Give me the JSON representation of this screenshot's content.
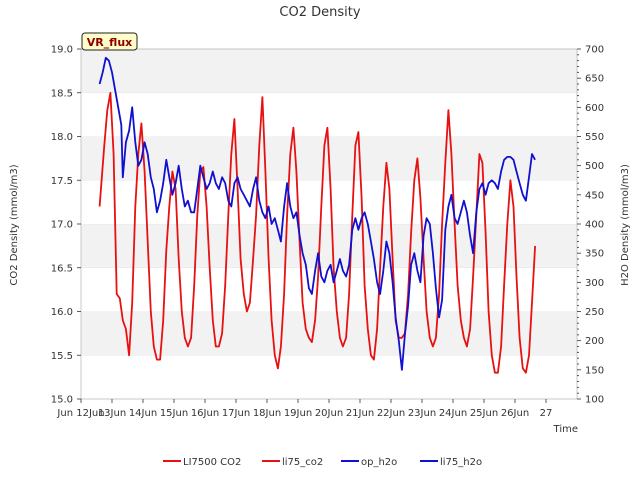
{
  "chart_data": {
    "type": "line",
    "title": "CO2 Density",
    "xlabel": "Time",
    "ylabel": "CO2 Density (mmol/m3)",
    "ylabel_right": "H2O Density (mmol/m3)",
    "badge": "VR_flux",
    "x_ticks": [
      "Jun 12Jun",
      "13Jun",
      "14Jun",
      "15Jun",
      "16Jun",
      "17Jun",
      "18Jun",
      "19Jun",
      "20Jun",
      "21Jun",
      "22Jun",
      "23Jun",
      "24Jun",
      "25Jun",
      "26Jun",
      "27"
    ],
    "xlim": [
      11,
      27
    ],
    "ylim_left": [
      15.0,
      19.0
    ],
    "ylim_right": [
      100,
      700
    ],
    "y_ticks_left": [
      "15.0",
      "15.5",
      "16.0",
      "16.5",
      "17.0",
      "17.5",
      "18.0",
      "18.5",
      "19.0"
    ],
    "y_ticks_right": [
      "100",
      "150",
      "200",
      "250",
      "300",
      "350",
      "400",
      "450",
      "500",
      "550",
      "600",
      "650",
      "700"
    ],
    "grid": "horizontal bands",
    "legend_position": "bottom",
    "legend": [
      {
        "name": "LI7500 CO2",
        "color": "#e81010"
      },
      {
        "name": "li75_co2",
        "color": "#e81010"
      },
      {
        "name": "op_h2o",
        "color": "#1010d0"
      },
      {
        "name": "li75_h2o",
        "color": "#1010d0"
      }
    ],
    "series": [
      {
        "name": "li75_co2",
        "axis": "left",
        "color": "#e81010",
        "points": [
          [
            11.6,
            17.2
          ],
          [
            11.75,
            17.9
          ],
          [
            11.85,
            18.3
          ],
          [
            11.95,
            18.5
          ],
          [
            12.05,
            17.8
          ],
          [
            12.15,
            16.2
          ],
          [
            12.25,
            16.15
          ],
          [
            12.35,
            15.9
          ],
          [
            12.45,
            15.8
          ],
          [
            12.55,
            15.5
          ],
          [
            12.65,
            16.1
          ],
          [
            12.75,
            17.2
          ],
          [
            12.85,
            17.8
          ],
          [
            12.95,
            18.15
          ],
          [
            13.05,
            17.6
          ],
          [
            13.15,
            16.8
          ],
          [
            13.25,
            16.0
          ],
          [
            13.35,
            15.6
          ],
          [
            13.45,
            15.45
          ],
          [
            13.55,
            15.45
          ],
          [
            13.65,
            15.9
          ],
          [
            13.75,
            16.7
          ],
          [
            13.85,
            17.2
          ],
          [
            13.95,
            17.6
          ],
          [
            14.05,
            17.4
          ],
          [
            14.15,
            16.6
          ],
          [
            14.25,
            16.0
          ],
          [
            14.35,
            15.7
          ],
          [
            14.45,
            15.6
          ],
          [
            14.55,
            15.7
          ],
          [
            14.65,
            16.3
          ],
          [
            14.75,
            17.1
          ],
          [
            14.85,
            17.6
          ],
          [
            14.95,
            17.65
          ],
          [
            15.05,
            17.2
          ],
          [
            15.15,
            16.5
          ],
          [
            15.25,
            15.9
          ],
          [
            15.35,
            15.6
          ],
          [
            15.45,
            15.6
          ],
          [
            15.55,
            15.75
          ],
          [
            15.65,
            16.3
          ],
          [
            15.75,
            17.1
          ],
          [
            15.85,
            17.8
          ],
          [
            15.95,
            18.2
          ],
          [
            16.05,
            17.4
          ],
          [
            16.15,
            16.6
          ],
          [
            16.25,
            16.2
          ],
          [
            16.35,
            16.0
          ],
          [
            16.45,
            16.1
          ],
          [
            16.55,
            16.6
          ],
          [
            16.65,
            17.1
          ],
          [
            16.75,
            17.9
          ],
          [
            16.85,
            18.45
          ],
          [
            16.95,
            17.6
          ],
          [
            17.05,
            16.6
          ],
          [
            17.15,
            15.9
          ],
          [
            17.25,
            15.5
          ],
          [
            17.35,
            15.35
          ],
          [
            17.45,
            15.6
          ],
          [
            17.55,
            16.2
          ],
          [
            17.65,
            17.1
          ],
          [
            17.75,
            17.8
          ],
          [
            17.85,
            18.1
          ],
          [
            17.95,
            17.6
          ],
          [
            18.05,
            16.8
          ],
          [
            18.15,
            16.1
          ],
          [
            18.25,
            15.8
          ],
          [
            18.35,
            15.7
          ],
          [
            18.45,
            15.65
          ],
          [
            18.55,
            15.9
          ],
          [
            18.65,
            16.4
          ],
          [
            18.75,
            17.2
          ],
          [
            18.85,
            17.9
          ],
          [
            18.95,
            18.1
          ],
          [
            19.05,
            17.4
          ],
          [
            19.15,
            16.5
          ],
          [
            19.25,
            16.0
          ],
          [
            19.35,
            15.7
          ],
          [
            19.45,
            15.6
          ],
          [
            19.55,
            15.7
          ],
          [
            19.65,
            16.2
          ],
          [
            19.75,
            17.1
          ],
          [
            19.85,
            17.9
          ],
          [
            19.95,
            18.05
          ],
          [
            20.05,
            17.3
          ],
          [
            20.15,
            16.3
          ],
          [
            20.25,
            15.8
          ],
          [
            20.35,
            15.5
          ],
          [
            20.45,
            15.45
          ],
          [
            20.55,
            15.8
          ],
          [
            20.65,
            16.5
          ],
          [
            20.75,
            17.2
          ],
          [
            20.85,
            17.7
          ],
          [
            20.95,
            17.4
          ],
          [
            21.05,
            16.6
          ],
          [
            21.15,
            15.9
          ],
          [
            21.25,
            15.7
          ],
          [
            21.35,
            15.7
          ],
          [
            21.45,
            15.75
          ],
          [
            21.55,
            16.2
          ],
          [
            21.65,
            16.9
          ],
          [
            21.75,
            17.5
          ],
          [
            21.85,
            17.75
          ],
          [
            21.95,
            17.3
          ],
          [
            22.05,
            16.6
          ],
          [
            22.15,
            16.0
          ],
          [
            22.25,
            15.7
          ],
          [
            22.35,
            15.6
          ],
          [
            22.45,
            15.7
          ],
          [
            22.55,
            16.2
          ],
          [
            22.65,
            17.0
          ],
          [
            22.75,
            17.7
          ],
          [
            22.85,
            18.3
          ],
          [
            22.95,
            17.8
          ],
          [
            23.05,
            17.0
          ],
          [
            23.15,
            16.3
          ],
          [
            23.25,
            15.9
          ],
          [
            23.35,
            15.7
          ],
          [
            23.45,
            15.6
          ],
          [
            23.55,
            15.8
          ],
          [
            23.65,
            16.4
          ],
          [
            23.75,
            17.1
          ],
          [
            23.85,
            17.8
          ],
          [
            23.95,
            17.7
          ],
          [
            24.05,
            16.9
          ],
          [
            24.15,
            16.0
          ],
          [
            24.25,
            15.5
          ],
          [
            24.35,
            15.3
          ],
          [
            24.45,
            15.3
          ],
          [
            24.55,
            15.6
          ],
          [
            24.65,
            16.3
          ],
          [
            24.75,
            17.0
          ],
          [
            24.85,
            17.5
          ],
          [
            24.95,
            17.2
          ],
          [
            25.05,
            16.4
          ],
          [
            25.15,
            15.7
          ],
          [
            25.25,
            15.35
          ],
          [
            25.35,
            15.3
          ],
          [
            25.45,
            15.5
          ],
          [
            25.55,
            16.1
          ],
          [
            25.65,
            16.75
          ]
        ]
      },
      {
        "name": "li75_h2o",
        "axis": "right",
        "color": "#1010d0",
        "points": [
          [
            11.6,
            640
          ],
          [
            11.7,
            660
          ],
          [
            11.8,
            685
          ],
          [
            11.9,
            680
          ],
          [
            12.0,
            660
          ],
          [
            12.1,
            630
          ],
          [
            12.2,
            600
          ],
          [
            12.3,
            570
          ],
          [
            12.35,
            480
          ],
          [
            12.45,
            540
          ],
          [
            12.55,
            560
          ],
          [
            12.65,
            600
          ],
          [
            12.75,
            540
          ],
          [
            12.85,
            500
          ],
          [
            12.95,
            510
          ],
          [
            13.05,
            540
          ],
          [
            13.15,
            520
          ],
          [
            13.25,
            480
          ],
          [
            13.35,
            460
          ],
          [
            13.45,
            420
          ],
          [
            13.55,
            440
          ],
          [
            13.65,
            470
          ],
          [
            13.75,
            510
          ],
          [
            13.85,
            480
          ],
          [
            13.95,
            450
          ],
          [
            14.05,
            470
          ],
          [
            14.15,
            500
          ],
          [
            14.25,
            460
          ],
          [
            14.35,
            430
          ],
          [
            14.45,
            440
          ],
          [
            14.55,
            420
          ],
          [
            14.65,
            420
          ],
          [
            14.75,
            460
          ],
          [
            14.85,
            500
          ],
          [
            14.95,
            480
          ],
          [
            15.05,
            460
          ],
          [
            15.15,
            470
          ],
          [
            15.25,
            490
          ],
          [
            15.35,
            470
          ],
          [
            15.45,
            460
          ],
          [
            15.55,
            480
          ],
          [
            15.65,
            470
          ],
          [
            15.75,
            440
          ],
          [
            15.85,
            430
          ],
          [
            15.95,
            470
          ],
          [
            16.05,
            480
          ],
          [
            16.15,
            460
          ],
          [
            16.25,
            450
          ],
          [
            16.35,
            440
          ],
          [
            16.45,
            430
          ],
          [
            16.55,
            460
          ],
          [
            16.65,
            480
          ],
          [
            16.75,
            440
          ],
          [
            16.85,
            420
          ],
          [
            16.95,
            410
          ],
          [
            17.05,
            430
          ],
          [
            17.15,
            400
          ],
          [
            17.25,
            410
          ],
          [
            17.35,
            390
          ],
          [
            17.45,
            370
          ],
          [
            17.55,
            430
          ],
          [
            17.65,
            470
          ],
          [
            17.75,
            430
          ],
          [
            17.85,
            410
          ],
          [
            17.95,
            420
          ],
          [
            18.05,
            380
          ],
          [
            18.15,
            350
          ],
          [
            18.25,
            330
          ],
          [
            18.35,
            290
          ],
          [
            18.45,
            280
          ],
          [
            18.55,
            320
          ],
          [
            18.65,
            350
          ],
          [
            18.75,
            310
          ],
          [
            18.85,
            300
          ],
          [
            18.95,
            320
          ],
          [
            19.05,
            330
          ],
          [
            19.15,
            300
          ],
          [
            19.25,
            320
          ],
          [
            19.35,
            340
          ],
          [
            19.45,
            320
          ],
          [
            19.55,
            310
          ],
          [
            19.65,
            330
          ],
          [
            19.75,
            390
          ],
          [
            19.85,
            410
          ],
          [
            19.95,
            390
          ],
          [
            20.05,
            410
          ],
          [
            20.15,
            420
          ],
          [
            20.25,
            400
          ],
          [
            20.35,
            370
          ],
          [
            20.45,
            340
          ],
          [
            20.55,
            300
          ],
          [
            20.65,
            280
          ],
          [
            20.75,
            320
          ],
          [
            20.85,
            370
          ],
          [
            20.95,
            350
          ],
          [
            21.05,
            300
          ],
          [
            21.15,
            240
          ],
          [
            21.25,
            200
          ],
          [
            21.35,
            150
          ],
          [
            21.45,
            210
          ],
          [
            21.55,
            260
          ],
          [
            21.65,
            330
          ],
          [
            21.75,
            350
          ],
          [
            21.85,
            320
          ],
          [
            21.95,
            300
          ],
          [
            22.05,
            380
          ],
          [
            22.15,
            410
          ],
          [
            22.25,
            400
          ],
          [
            22.35,
            350
          ],
          [
            22.45,
            290
          ],
          [
            22.55,
            240
          ],
          [
            22.65,
            270
          ],
          [
            22.75,
            390
          ],
          [
            22.85,
            430
          ],
          [
            22.95,
            450
          ],
          [
            23.05,
            410
          ],
          [
            23.15,
            400
          ],
          [
            23.25,
            420
          ],
          [
            23.35,
            440
          ],
          [
            23.45,
            420
          ],
          [
            23.55,
            380
          ],
          [
            23.65,
            350
          ],
          [
            23.75,
            420
          ],
          [
            23.85,
            460
          ],
          [
            23.95,
            470
          ],
          [
            24.05,
            450
          ],
          [
            24.15,
            470
          ],
          [
            24.25,
            475
          ],
          [
            24.35,
            470
          ],
          [
            24.45,
            460
          ],
          [
            24.55,
            490
          ],
          [
            24.65,
            510
          ],
          [
            24.75,
            515
          ],
          [
            24.85,
            515
          ],
          [
            24.95,
            510
          ],
          [
            25.05,
            490
          ],
          [
            25.15,
            470
          ],
          [
            25.25,
            450
          ],
          [
            25.35,
            440
          ],
          [
            25.45,
            480
          ],
          [
            25.55,
            520
          ],
          [
            25.65,
            510
          ]
        ]
      }
    ]
  }
}
